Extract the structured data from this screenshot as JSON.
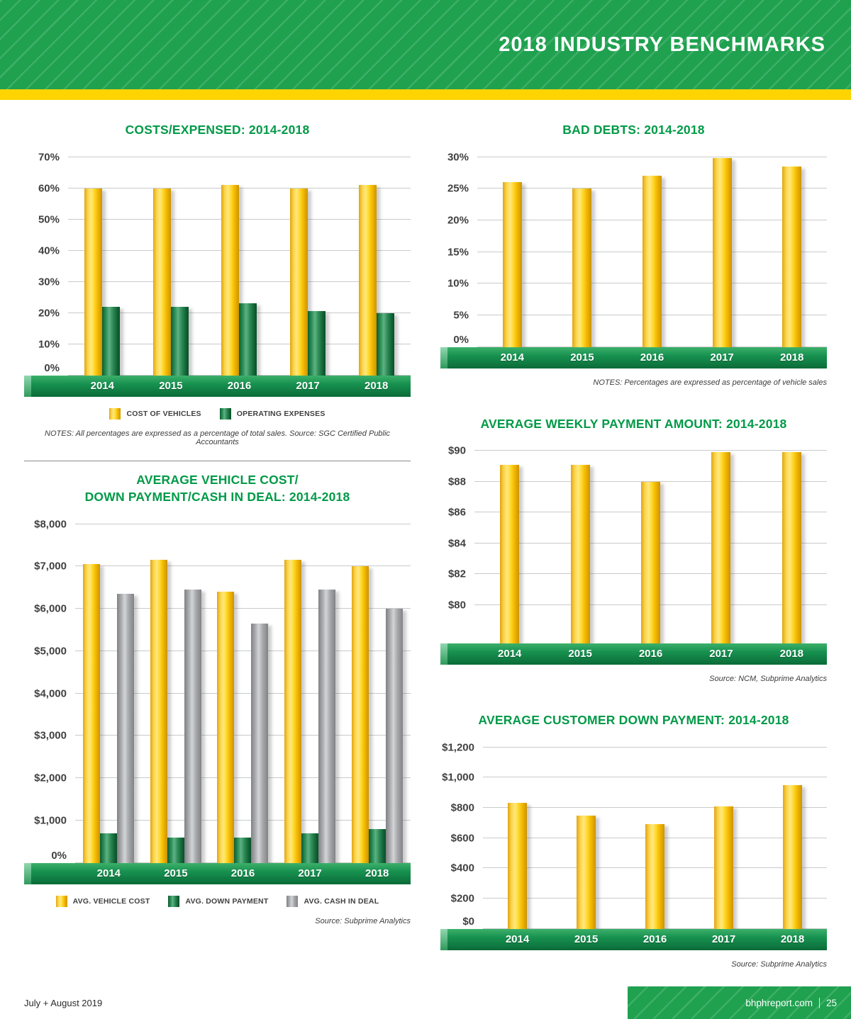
{
  "header": {
    "title": "2018 INDUSTRY BENCHMARKS"
  },
  "footer": {
    "left": "July + August 2019",
    "site": "bhphreport.com",
    "page": "25"
  },
  "colors": {
    "header_green": "#1fa14f",
    "accent_yellow": "#ffd400",
    "title_green": "#009a47",
    "bar_yellow": "#fdc500",
    "bar_green": "#1d7f49",
    "bar_gray": "#a7a9ac",
    "axis_text": "#414042",
    "band_green": "#0f7e42"
  },
  "chart_data": [
    {
      "id": "costs_expensed",
      "type": "bar",
      "title": "COSTS/EXPENSED: 2014-2018",
      "categories": [
        "2014",
        "2015",
        "2016",
        "2017",
        "2018"
      ],
      "series": [
        {
          "name": "COST OF VEHICLES",
          "palette": "yellow",
          "values": [
            60,
            60,
            61,
            60,
            61
          ]
        },
        {
          "name": "OPERATING EXPENSES",
          "palette": "green",
          "values": [
            22,
            22,
            23,
            20.5,
            20
          ]
        }
      ],
      "ylim": [
        0,
        70
      ],
      "yticks": [
        {
          "label": "70%",
          "value": 70
        },
        {
          "label": "60%",
          "value": 60
        },
        {
          "label": "50%",
          "value": 50
        },
        {
          "label": "40%",
          "value": 40
        },
        {
          "label": "30%",
          "value": 30
        },
        {
          "label": "20%",
          "value": 20
        },
        {
          "label": "10%",
          "value": 10
        },
        {
          "label": "0%",
          "value": 0
        }
      ],
      "grid": true,
      "legend_position": "bottom",
      "notes": "NOTES: All percentages are expressed as a percentage of total sales. Source: SGC Certified Public Accountants"
    },
    {
      "id": "bad_debts",
      "type": "bar",
      "title": "BAD DEBTS: 2014-2018",
      "categories": [
        "2014",
        "2015",
        "2016",
        "2017",
        "2018"
      ],
      "series": [
        {
          "name": "BAD DEBTS",
          "palette": "yellow",
          "values": [
            26,
            25,
            27,
            29.8,
            28.5
          ]
        }
      ],
      "ylim": [
        0,
        30
      ],
      "yticks": [
        {
          "label": "30%",
          "value": 30
        },
        {
          "label": "25%",
          "value": 25
        },
        {
          "label": "20%",
          "value": 20
        },
        {
          "label": "15%",
          "value": 15
        },
        {
          "label": "10%",
          "value": 10
        },
        {
          "label": "5%",
          "value": 5
        },
        {
          "label": "0%",
          "value": 0
        }
      ],
      "grid": true,
      "legend_position": "none",
      "notes": "NOTES: Percentages are expressed as percentage of vehicle sales"
    },
    {
      "id": "vehicle_cost_down_payment_cash",
      "type": "bar",
      "title": "AVERAGE VEHICLE COST/\nDOWN PAYMENT/CASH IN DEAL: 2014-2018",
      "categories": [
        "2014",
        "2015",
        "2016",
        "2017",
        "2018"
      ],
      "series": [
        {
          "name": "AVG. VEHICLE COST",
          "palette": "yellow",
          "values": [
            7050,
            7150,
            6400,
            7150,
            7000
          ]
        },
        {
          "name": "AVG. DOWN PAYMENT",
          "palette": "green",
          "values": [
            700,
            600,
            600,
            700,
            800
          ]
        },
        {
          "name": "AVG. CASH IN DEAL",
          "palette": "gray",
          "values": [
            6350,
            6450,
            5650,
            6450,
            6000
          ]
        }
      ],
      "ylim": [
        0,
        8000
      ],
      "yticks": [
        {
          "label": "$8,000",
          "value": 8000
        },
        {
          "label": "$7,000",
          "value": 7000
        },
        {
          "label": "$6,000",
          "value": 6000
        },
        {
          "label": "$5,000",
          "value": 5000
        },
        {
          "label": "$4,000",
          "value": 4000
        },
        {
          "label": "$3,000",
          "value": 3000
        },
        {
          "label": "$2,000",
          "value": 2000
        },
        {
          "label": "$1,000",
          "value": 1000
        },
        {
          "label": "0%",
          "value": 0
        }
      ],
      "grid": true,
      "legend_position": "bottom",
      "source": "Source: Subprime Analytics"
    },
    {
      "id": "weekly_payment",
      "type": "bar",
      "title": "AVERAGE WEEKLY PAYMENT AMOUNT: 2014-2018",
      "categories": [
        "2014",
        "2015",
        "2016",
        "2017",
        "2018"
      ],
      "series": [
        {
          "name": "AVG. WEEKLY PAYMENT",
          "palette": "yellow",
          "values": [
            89.1,
            89.1,
            88.0,
            89.9,
            89.9
          ]
        }
      ],
      "ylim": [
        77.5,
        90
      ],
      "yticks": [
        {
          "label": "$90",
          "value": 90
        },
        {
          "label": "$88",
          "value": 88
        },
        {
          "label": "$86",
          "value": 86
        },
        {
          "label": "$84",
          "value": 84
        },
        {
          "label": "$82",
          "value": 82
        },
        {
          "label": "$80",
          "value": 80
        }
      ],
      "grid": true,
      "legend_position": "none",
      "source": "Source: NCM, Subprime Analytics"
    },
    {
      "id": "customer_down_payment",
      "type": "bar",
      "title": "AVERAGE CUSTOMER DOWN PAYMENT: 2014-2018",
      "categories": [
        "2014",
        "2015",
        "2016",
        "2017",
        "2018"
      ],
      "series": [
        {
          "name": "AVG. CUSTOMER DOWN PAYMENT",
          "palette": "yellow",
          "values": [
            830,
            750,
            690,
            810,
            950
          ]
        }
      ],
      "ylim": [
        0,
        1200
      ],
      "yticks": [
        {
          "label": "$1,200",
          "value": 1200
        },
        {
          "label": "$1,000",
          "value": 1000
        },
        {
          "label": "$800",
          "value": 800
        },
        {
          "label": "$600",
          "value": 600
        },
        {
          "label": "$400",
          "value": 400
        },
        {
          "label": "$200",
          "value": 200
        },
        {
          "label": "$0",
          "value": 0
        }
      ],
      "grid": true,
      "legend_position": "none",
      "source": "Source: Subprime Analytics"
    }
  ]
}
